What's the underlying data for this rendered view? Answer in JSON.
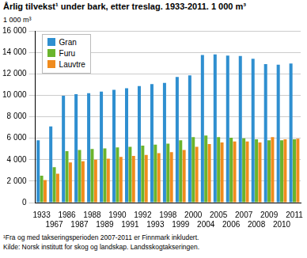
{
  "chart_data": {
    "type": "bar",
    "title": "Årlig tilvekst¹ under bark, etter treslag. 1933-2011. 1 000 m³",
    "y_label": "1 000 m³",
    "categories": [
      "1933",
      "1967",
      "1986",
      "1987",
      "1988",
      "1989",
      "1990",
      "1991",
      "1992",
      "1993",
      "1998",
      "1999",
      "2000",
      "2004",
      "2005",
      "2006",
      "2007",
      "2008",
      "2009",
      "2010",
      "2011"
    ],
    "series": [
      {
        "name": "Gran",
        "color": "#2f8fd0",
        "values": [
          5800,
          7100,
          9950,
          10100,
          10200,
          10350,
          10500,
          10650,
          10850,
          11050,
          11150,
          11700,
          11850,
          13750,
          13800,
          13700,
          13650,
          13400,
          12900,
          12850,
          12950
        ]
      },
      {
        "name": "Furu",
        "color": "#6ab42d",
        "values": [
          2500,
          3300,
          4800,
          4900,
          5000,
          5050,
          5150,
          5200,
          5300,
          5400,
          5500,
          5800,
          6100,
          6250,
          6100,
          6050,
          6000,
          5900,
          5800,
          5800,
          5900
        ]
      },
      {
        "name": "Lauvtre",
        "color": "#f08b1d",
        "values": [
          2100,
          2700,
          3750,
          3850,
          4000,
          4100,
          4250,
          4350,
          4450,
          4600,
          4700,
          4900,
          5200,
          5450,
          5600,
          5700,
          5700,
          5600,
          6100,
          5900,
          5950
        ]
      }
    ],
    "ylim": [
      0,
      16000
    ],
    "yticks": [
      0,
      {
        "value": 2000,
        "label": "2 000"
      },
      {
        "value": 4000,
        "label": "4 000"
      },
      {
        "value": 6000,
        "label": "6 000"
      },
      {
        "value": 8000,
        "label": "8 000"
      },
      {
        "value": 10000,
        "label": "10 000"
      },
      {
        "value": 12000,
        "label": "12 000"
      },
      {
        "value": 14000,
        "label": "14 000"
      },
      {
        "value": 16000,
        "label": "16 000"
      }
    ],
    "grid": true,
    "legend": "upper left",
    "footnote": "¹Fra og med takseringsperioden 2007-2011 er Finnmark inkludert.",
    "source": "Kilde: Norsk institutt for skog og landskap. Landsskogtakseringen."
  }
}
